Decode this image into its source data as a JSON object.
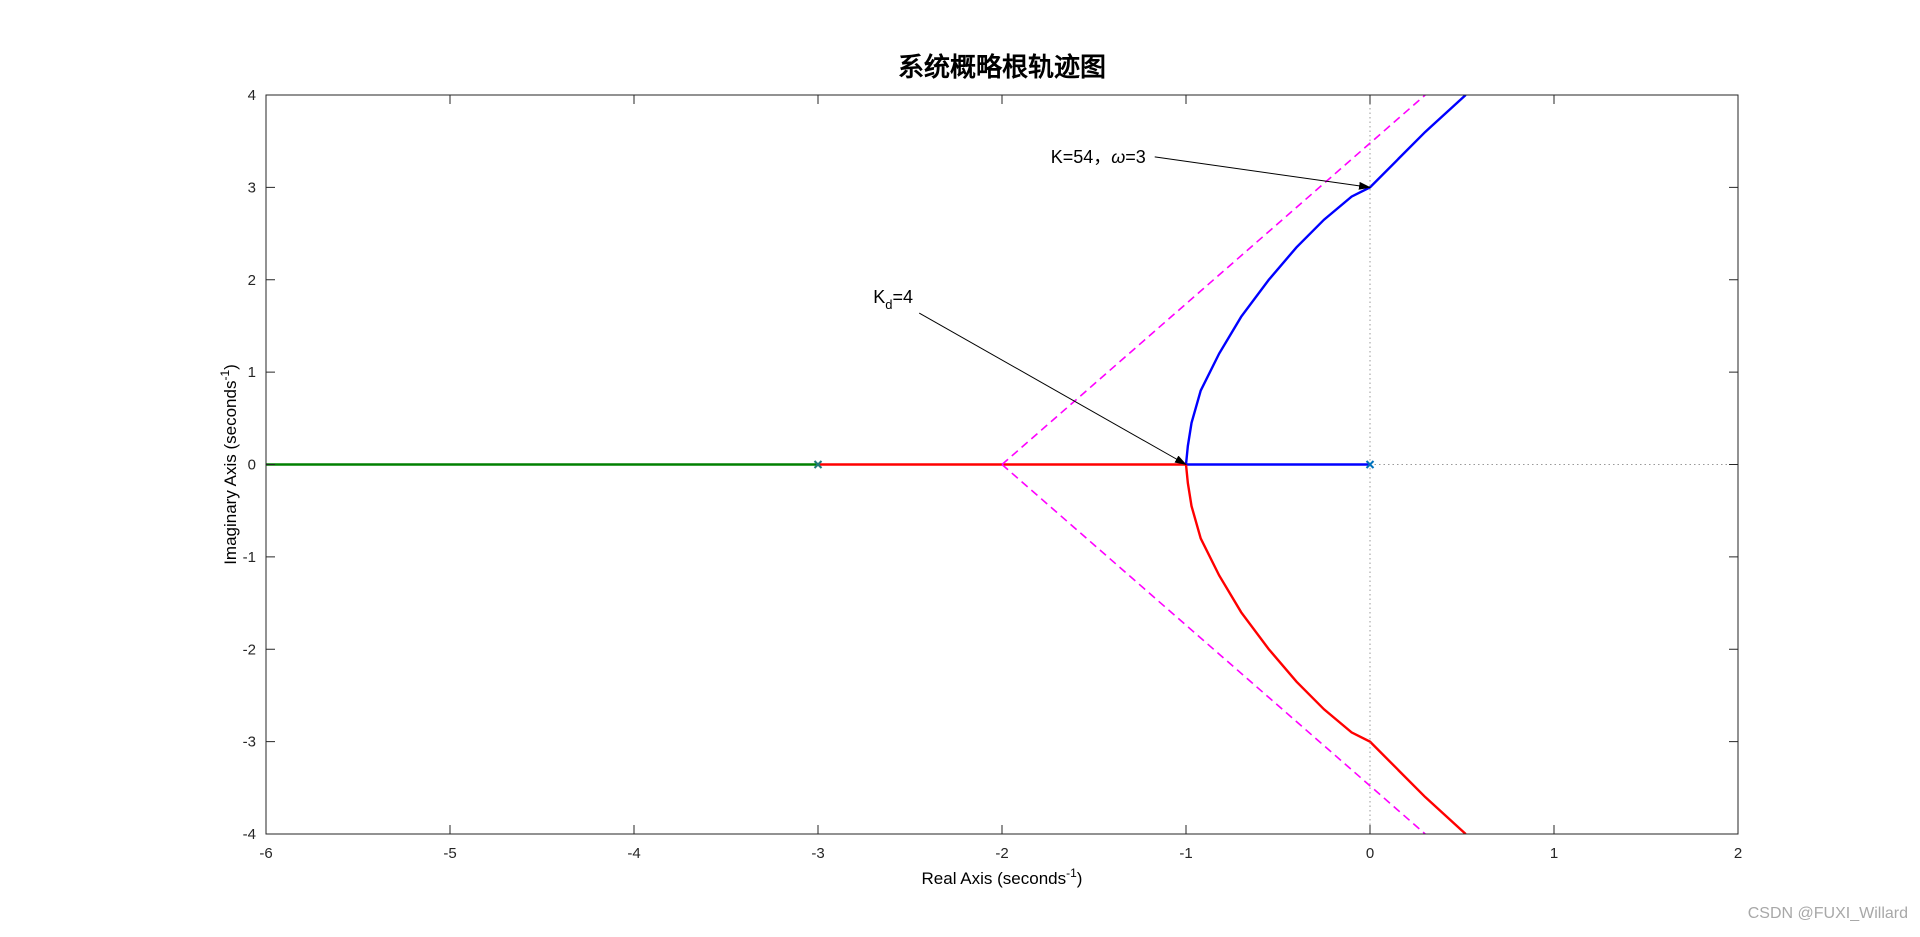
{
  "chart_data": {
    "type": "line",
    "title": "系统概略根轨迹图",
    "xlabel": "Real Axis (seconds",
    "xlabel_sup": "-1",
    "xlabel_end": ")",
    "ylabel": "Imaginary Axis (seconds",
    "ylabel_sup": "-1",
    "ylabel_end": ")",
    "xlim": [
      -6,
      2
    ],
    "ylim": [
      -4,
      4
    ],
    "xticks": [
      -6,
      -5,
      -4,
      -3,
      -2,
      -1,
      0,
      1,
      2
    ],
    "yticks": [
      -4,
      -3,
      -2,
      -1,
      0,
      1,
      2,
      3,
      4
    ],
    "grid": false,
    "legend": "none",
    "poles": [
      {
        "x": 0,
        "y": 0,
        "color": "#0072BD"
      },
      {
        "x": -3,
        "y": 0,
        "color": "#1f7a7a"
      }
    ],
    "series": [
      {
        "color": "#0000ff",
        "style": "solid",
        "x": [
          0,
          -0.5,
          -1.0
        ],
        "y": [
          0,
          0,
          0
        ]
      },
      {
        "color": "#0000ff",
        "style": "solid",
        "x": [
          -1.0,
          -0.99,
          -0.97,
          -0.92,
          -0.82,
          -0.7,
          -0.55,
          -0.4,
          -0.25,
          -0.1,
          0.0,
          0.15,
          0.3,
          0.52
        ],
        "y": [
          0,
          0.2,
          0.45,
          0.8,
          1.2,
          1.6,
          2.0,
          2.35,
          2.65,
          2.9,
          3.0,
          3.3,
          3.6,
          4.0
        ]
      },
      {
        "color": "#ff0000",
        "style": "solid",
        "x": [
          -3,
          -2,
          -1
        ],
        "y": [
          0,
          0,
          0
        ]
      },
      {
        "color": "#ff0000",
        "style": "solid",
        "x": [
          -1.0,
          -0.99,
          -0.97,
          -0.92,
          -0.82,
          -0.7,
          -0.55,
          -0.4,
          -0.25,
          -0.1,
          0.0,
          0.15,
          0.3,
          0.52
        ],
        "y": [
          0,
          -0.2,
          -0.45,
          -0.8,
          -1.2,
          -1.6,
          -2.0,
          -2.35,
          -2.65,
          -2.9,
          -3.0,
          -3.3,
          -3.6,
          -4.0
        ]
      },
      {
        "color": "#008000",
        "style": "solid",
        "x": [
          -6,
          -3
        ],
        "y": [
          0,
          0
        ]
      },
      {
        "color": "#ff00ff",
        "style": "dashed",
        "x": [
          -2,
          0.3
        ],
        "y": [
          0,
          4.0
        ]
      },
      {
        "color": "#ff00ff",
        "style": "dashed",
        "x": [
          -2,
          0.3
        ],
        "y": [
          0,
          -4.0
        ]
      },
      {
        "color": "#9a9a9a",
        "style": "dotted",
        "x": [
          0,
          0
        ],
        "y": [
          -4,
          4
        ]
      },
      {
        "color": "#9a9a9a",
        "style": "dotted",
        "x": [
          0,
          2
        ],
        "y": [
          0,
          0
        ]
      }
    ],
    "annotations": [
      {
        "text_main": "K=54，",
        "text_omega": "ω",
        "text_tail": "=3",
        "text_x": -1.17,
        "text_y": 3.33,
        "arrow_from": [
          -1.17,
          3.33
        ],
        "arrow_to": [
          0,
          3.0
        ]
      },
      {
        "text_main": "K",
        "text_sub": "d",
        "text_tail": "=4",
        "text_x": -2.45,
        "text_y": 1.64,
        "arrow_from": [
          -2.45,
          1.64
        ],
        "arrow_to": [
          -1.0,
          0.0
        ]
      }
    ]
  },
  "watermark": "CSDN @FUXI_Willard"
}
